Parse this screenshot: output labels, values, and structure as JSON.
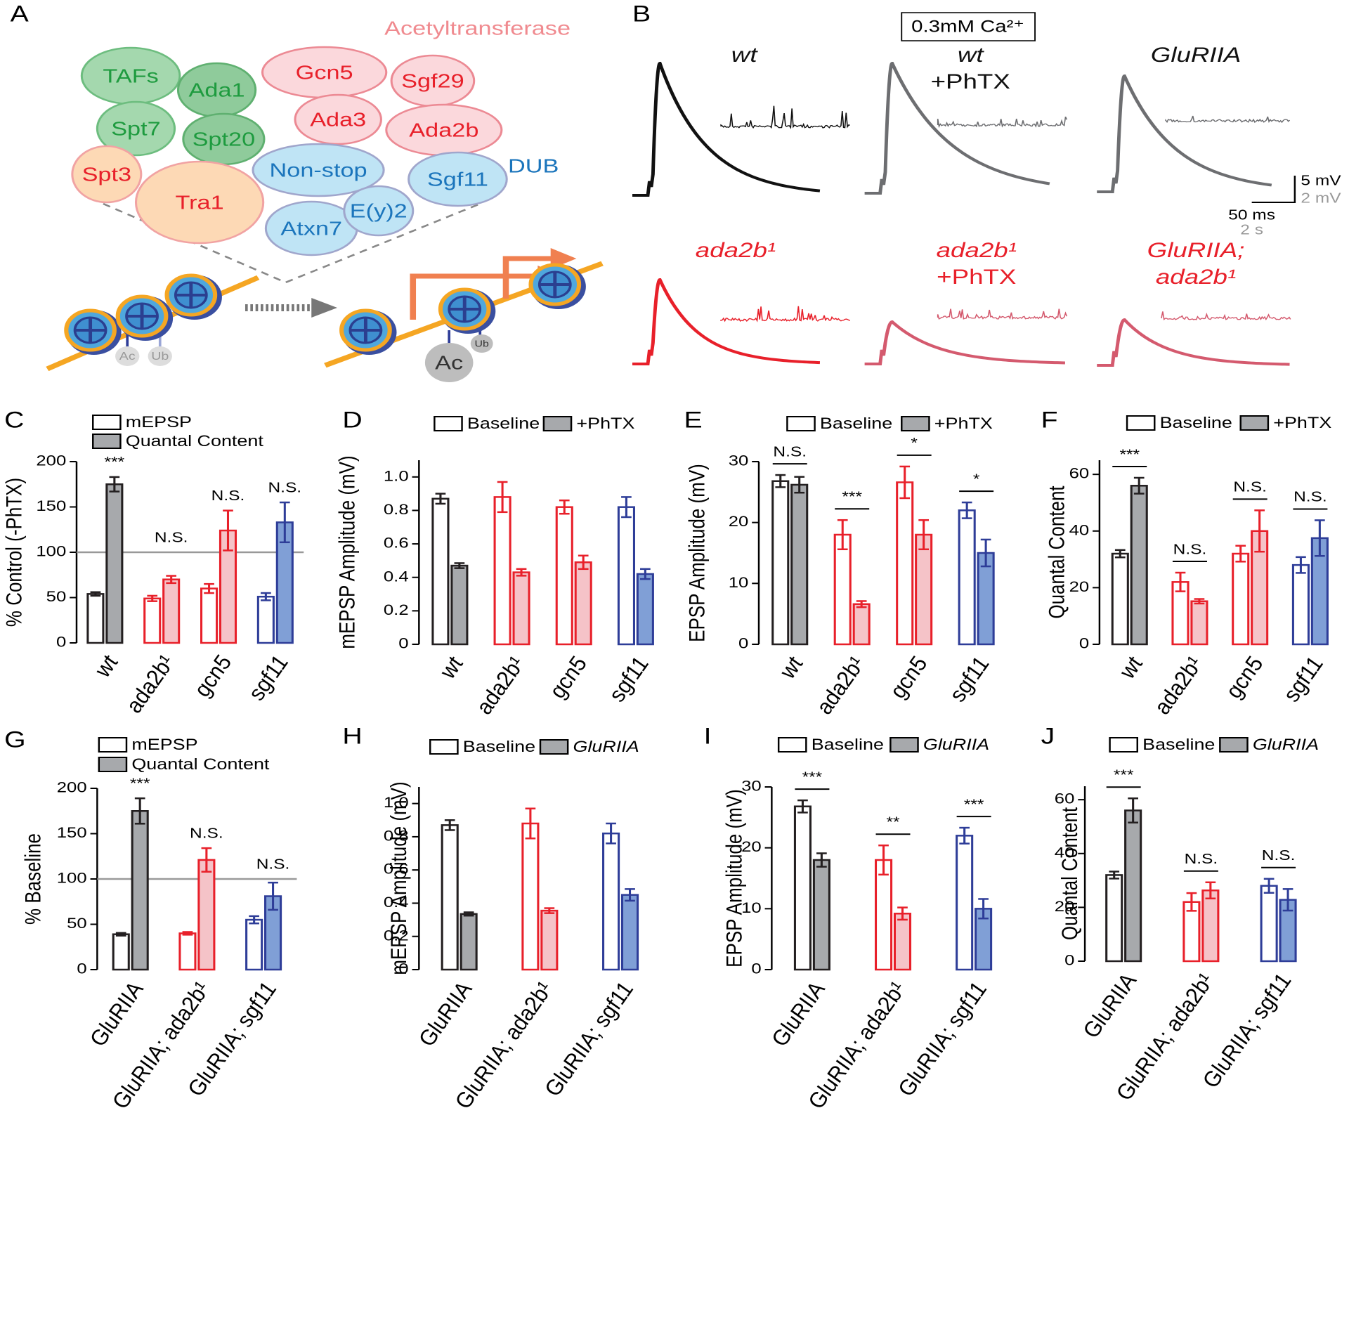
{
  "diagram": {
    "label": "A",
    "group_titles": {
      "acetyltransferase": "Acetyltransferase",
      "dub": "DUB"
    },
    "proteins": [
      "TAFs",
      "Ada1",
      "Spt7",
      "Spt20",
      "Gcn5",
      "Sgf29",
      "Ada3",
      "Ada2b",
      "Spt3",
      "Tra1",
      "Non-stop",
      "Sgf11",
      "Atxn7",
      "E(y)2"
    ],
    "modifications": [
      "Ac",
      "Ub",
      "Ac",
      "Ub"
    ]
  },
  "traces": {
    "label": "B",
    "condition": "0.3mM Ca²⁺",
    "genotypes": [
      [
        "wt"
      ],
      [
        "wt",
        "+PhTX"
      ],
      [
        "GluRIIA"
      ],
      [
        "ada2b¹"
      ],
      [
        "ada2b¹",
        "+PhTX"
      ],
      [
        "GluRIIA;",
        "ada2b¹"
      ]
    ],
    "scale_bars": [
      "5 mV",
      "2 mV",
      "50 ms",
      "2 s"
    ]
  },
  "chart_data": [
    {
      "type": "bar",
      "label": "C",
      "ylabel": "% Control (-PhTX)",
      "categories": [
        "wt",
        "ada2b¹",
        "gcn5",
        "sgf11"
      ],
      "series": [
        {
          "name": "mEPSP",
          "values": [
            54,
            49,
            60,
            51
          ],
          "errors": [
            2,
            3,
            5,
            4
          ]
        },
        {
          "name": "Quantal Content",
          "values": [
            175,
            70,
            124,
            133
          ],
          "errors": [
            8,
            4,
            22,
            22
          ]
        }
      ],
      "colors": [
        "#231f20",
        "#e8202a",
        "#e8202a",
        "#2e3d98"
      ],
      "fills": [
        "#a7a9ac",
        "#f5c3c8",
        "#f5c3c8",
        "#809fd6"
      ],
      "ylim": [
        0,
        200
      ],
      "yticks": [
        0,
        50,
        100,
        150,
        200
      ],
      "reference_line": 100,
      "annotations": [
        "***",
        "N.S.",
        "N.S.",
        "N.S."
      ],
      "significance_bracket": false
    },
    {
      "type": "bar",
      "label": "D",
      "ylabel": "mEPSP Amplitude (mV)",
      "categories": [
        "wt",
        "ada2b¹",
        "gcn5",
        "sgf11"
      ],
      "series": [
        {
          "name": "Baseline",
          "values": [
            0.87,
            0.88,
            0.82,
            0.82
          ],
          "errors": [
            0.03,
            0.09,
            0.04,
            0.06
          ]
        },
        {
          "name": "+PhTX",
          "values": [
            0.47,
            0.43,
            0.49,
            0.42
          ],
          "errors": [
            0.015,
            0.02,
            0.04,
            0.03
          ]
        }
      ],
      "colors": [
        "#231f20",
        "#e8202a",
        "#e8202a",
        "#2e3d98"
      ],
      "fills": [
        "#a7a9ac",
        "#f5c3c8",
        "#f5c3c8",
        "#809fd6"
      ],
      "ylim": [
        0,
        1.1
      ],
      "yticks": [
        0,
        0.2,
        0.4,
        0.6,
        0.8,
        {
          "value": 1,
          "label": "1.0"
        }
      ]
    },
    {
      "type": "bar",
      "label": "E",
      "ylabel": "EPSP Amplitude (mV)",
      "categories": [
        "wt",
        "ada2b¹",
        "gcn5",
        "sgf11"
      ],
      "series": [
        {
          "name": "Baseline",
          "values": [
            26.8,
            18,
            26.6,
            22
          ],
          "errors": [
            1,
            2.4,
            2.6,
            1.3
          ]
        },
        {
          "name": "+PhTX",
          "values": [
            26.2,
            6.6,
            18,
            15
          ],
          "errors": [
            1.3,
            0.5,
            2.4,
            2.2
          ]
        }
      ],
      "colors": [
        "#231f20",
        "#e8202a",
        "#e8202a",
        "#2e3d98"
      ],
      "fills": [
        "#a7a9ac",
        "#f5c3c8",
        "#f5c3c8",
        "#809fd6"
      ],
      "ylim": [
        0,
        30
      ],
      "yticks": [
        0,
        10,
        20,
        30
      ],
      "annotations": [
        "N.S.",
        "***",
        "*",
        "*"
      ],
      "significance_bracket": true
    },
    {
      "type": "bar",
      "label": "F",
      "ylabel": "Quantal Content",
      "categories": [
        "wt",
        "ada2b¹",
        "gcn5",
        "sgf11"
      ],
      "series": [
        {
          "name": "Baseline",
          "values": [
            32,
            22,
            32,
            28
          ],
          "errors": [
            1.3,
            3.3,
            2.8,
            2.8
          ]
        },
        {
          "name": "+PhTX",
          "values": [
            56,
            15.2,
            40,
            37.5
          ],
          "errors": [
            2.8,
            0.8,
            7.3,
            6.3
          ]
        }
      ],
      "colors": [
        "#231f20",
        "#e8202a",
        "#e8202a",
        "#2e3d98"
      ],
      "fills": [
        "#a7a9ac",
        "#f5c3c8",
        "#f5c3c8",
        "#809fd6"
      ],
      "ylim": [
        0,
        65
      ],
      "yticks": [
        0,
        20,
        40,
        60
      ],
      "annotations": [
        "***",
        "N.S.",
        "N.S.",
        "N.S."
      ],
      "significance_bracket": true
    },
    {
      "type": "bar",
      "label": "G",
      "ylabel": "% Baseline",
      "categories": [
        "GluRIIA",
        "GluRIIA; ada2b¹",
        "GluRIIA; sgf11"
      ],
      "series": [
        {
          "name": "mEPSP",
          "values": [
            39,
            40,
            55
          ],
          "errors": [
            1.5,
            1.5,
            4
          ]
        },
        {
          "name": "Quantal Content",
          "values": [
            175,
            121,
            81
          ],
          "errors": [
            14,
            13,
            15
          ]
        }
      ],
      "colors": [
        "#231f20",
        "#e8202a",
        "#2e3d98"
      ],
      "fills": [
        "#a7a9ac",
        "#f5c3c8",
        "#809fd6"
      ],
      "ylim": [
        0,
        200
      ],
      "yticks": [
        0,
        50,
        100,
        150,
        200
      ],
      "reference_line": 100,
      "annotations": [
        "***",
        "N.S.",
        "N.S."
      ],
      "significance_bracket": false
    },
    {
      "type": "bar",
      "label": "H",
      "ylabel": "mEPSP Amplitude (mV)",
      "categories": [
        "GluRIIA",
        "GluRIIA; ada2b¹",
        "GluRIIA; sgf11"
      ],
      "series": [
        {
          "name": "Baseline",
          "values": [
            0.87,
            0.88,
            0.82
          ],
          "errors": [
            0.03,
            0.09,
            0.06
          ]
        },
        {
          "name": "GluRIIA",
          "values": [
            0.335,
            0.355,
            0.45
          ],
          "errors": [
            0.01,
            0.015,
            0.035
          ]
        }
      ],
      "colors": [
        "#231f20",
        "#e8202a",
        "#2e3d98"
      ],
      "fills": [
        "#a7a9ac",
        "#f5c3c8",
        "#809fd6"
      ],
      "ylim": [
        0,
        1.1
      ],
      "yticks": [
        0,
        0.2,
        0.4,
        0.6,
        0.8,
        {
          "value": 1,
          "label": "1.0"
        }
      ]
    },
    {
      "type": "bar",
      "label": "I",
      "ylabel": "EPSP Amplitude (mV)",
      "categories": [
        "GluRIIA",
        "GluRIIA; ada2b¹",
        "GluRIIA; sgf11"
      ],
      "series": [
        {
          "name": "Baseline",
          "values": [
            26.8,
            18,
            22
          ],
          "errors": [
            1,
            2.4,
            1.3
          ]
        },
        {
          "name": "GluRIIA",
          "values": [
            18,
            9.2,
            10
          ],
          "errors": [
            1.1,
            1,
            1.6
          ]
        }
      ],
      "colors": [
        "#231f20",
        "#e8202a",
        "#2e3d98"
      ],
      "fills": [
        "#a7a9ac",
        "#f5c3c8",
        "#809fd6"
      ],
      "ylim": [
        0,
        30
      ],
      "yticks": [
        0,
        10,
        20,
        30
      ],
      "annotations": [
        "***",
        "**",
        "***"
      ],
      "significance_bracket": true
    },
    {
      "type": "bar",
      "label": "J",
      "ylabel": "Quantal Content",
      "categories": [
        "GluRIIA",
        "GluRIIA; ada2b¹",
        "GluRIIA; sgf11"
      ],
      "series": [
        {
          "name": "Baseline",
          "values": [
            32,
            22,
            28
          ],
          "errors": [
            1.3,
            3.3,
            2.6
          ]
        },
        {
          "name": "GluRIIA",
          "values": [
            56,
            26.3,
            22.8
          ],
          "errors": [
            4.5,
            3,
            4
          ]
        }
      ],
      "colors": [
        "#231f20",
        "#e8202a",
        "#2e3d98"
      ],
      "fills": [
        "#a7a9ac",
        "#f5c3c8",
        "#809fd6"
      ],
      "ylim": [
        0,
        65
      ],
      "yticks": [
        0,
        20,
        40,
        60
      ],
      "annotations": [
        "***",
        "N.S.",
        "N.S."
      ],
      "significance_bracket": true
    }
  ]
}
